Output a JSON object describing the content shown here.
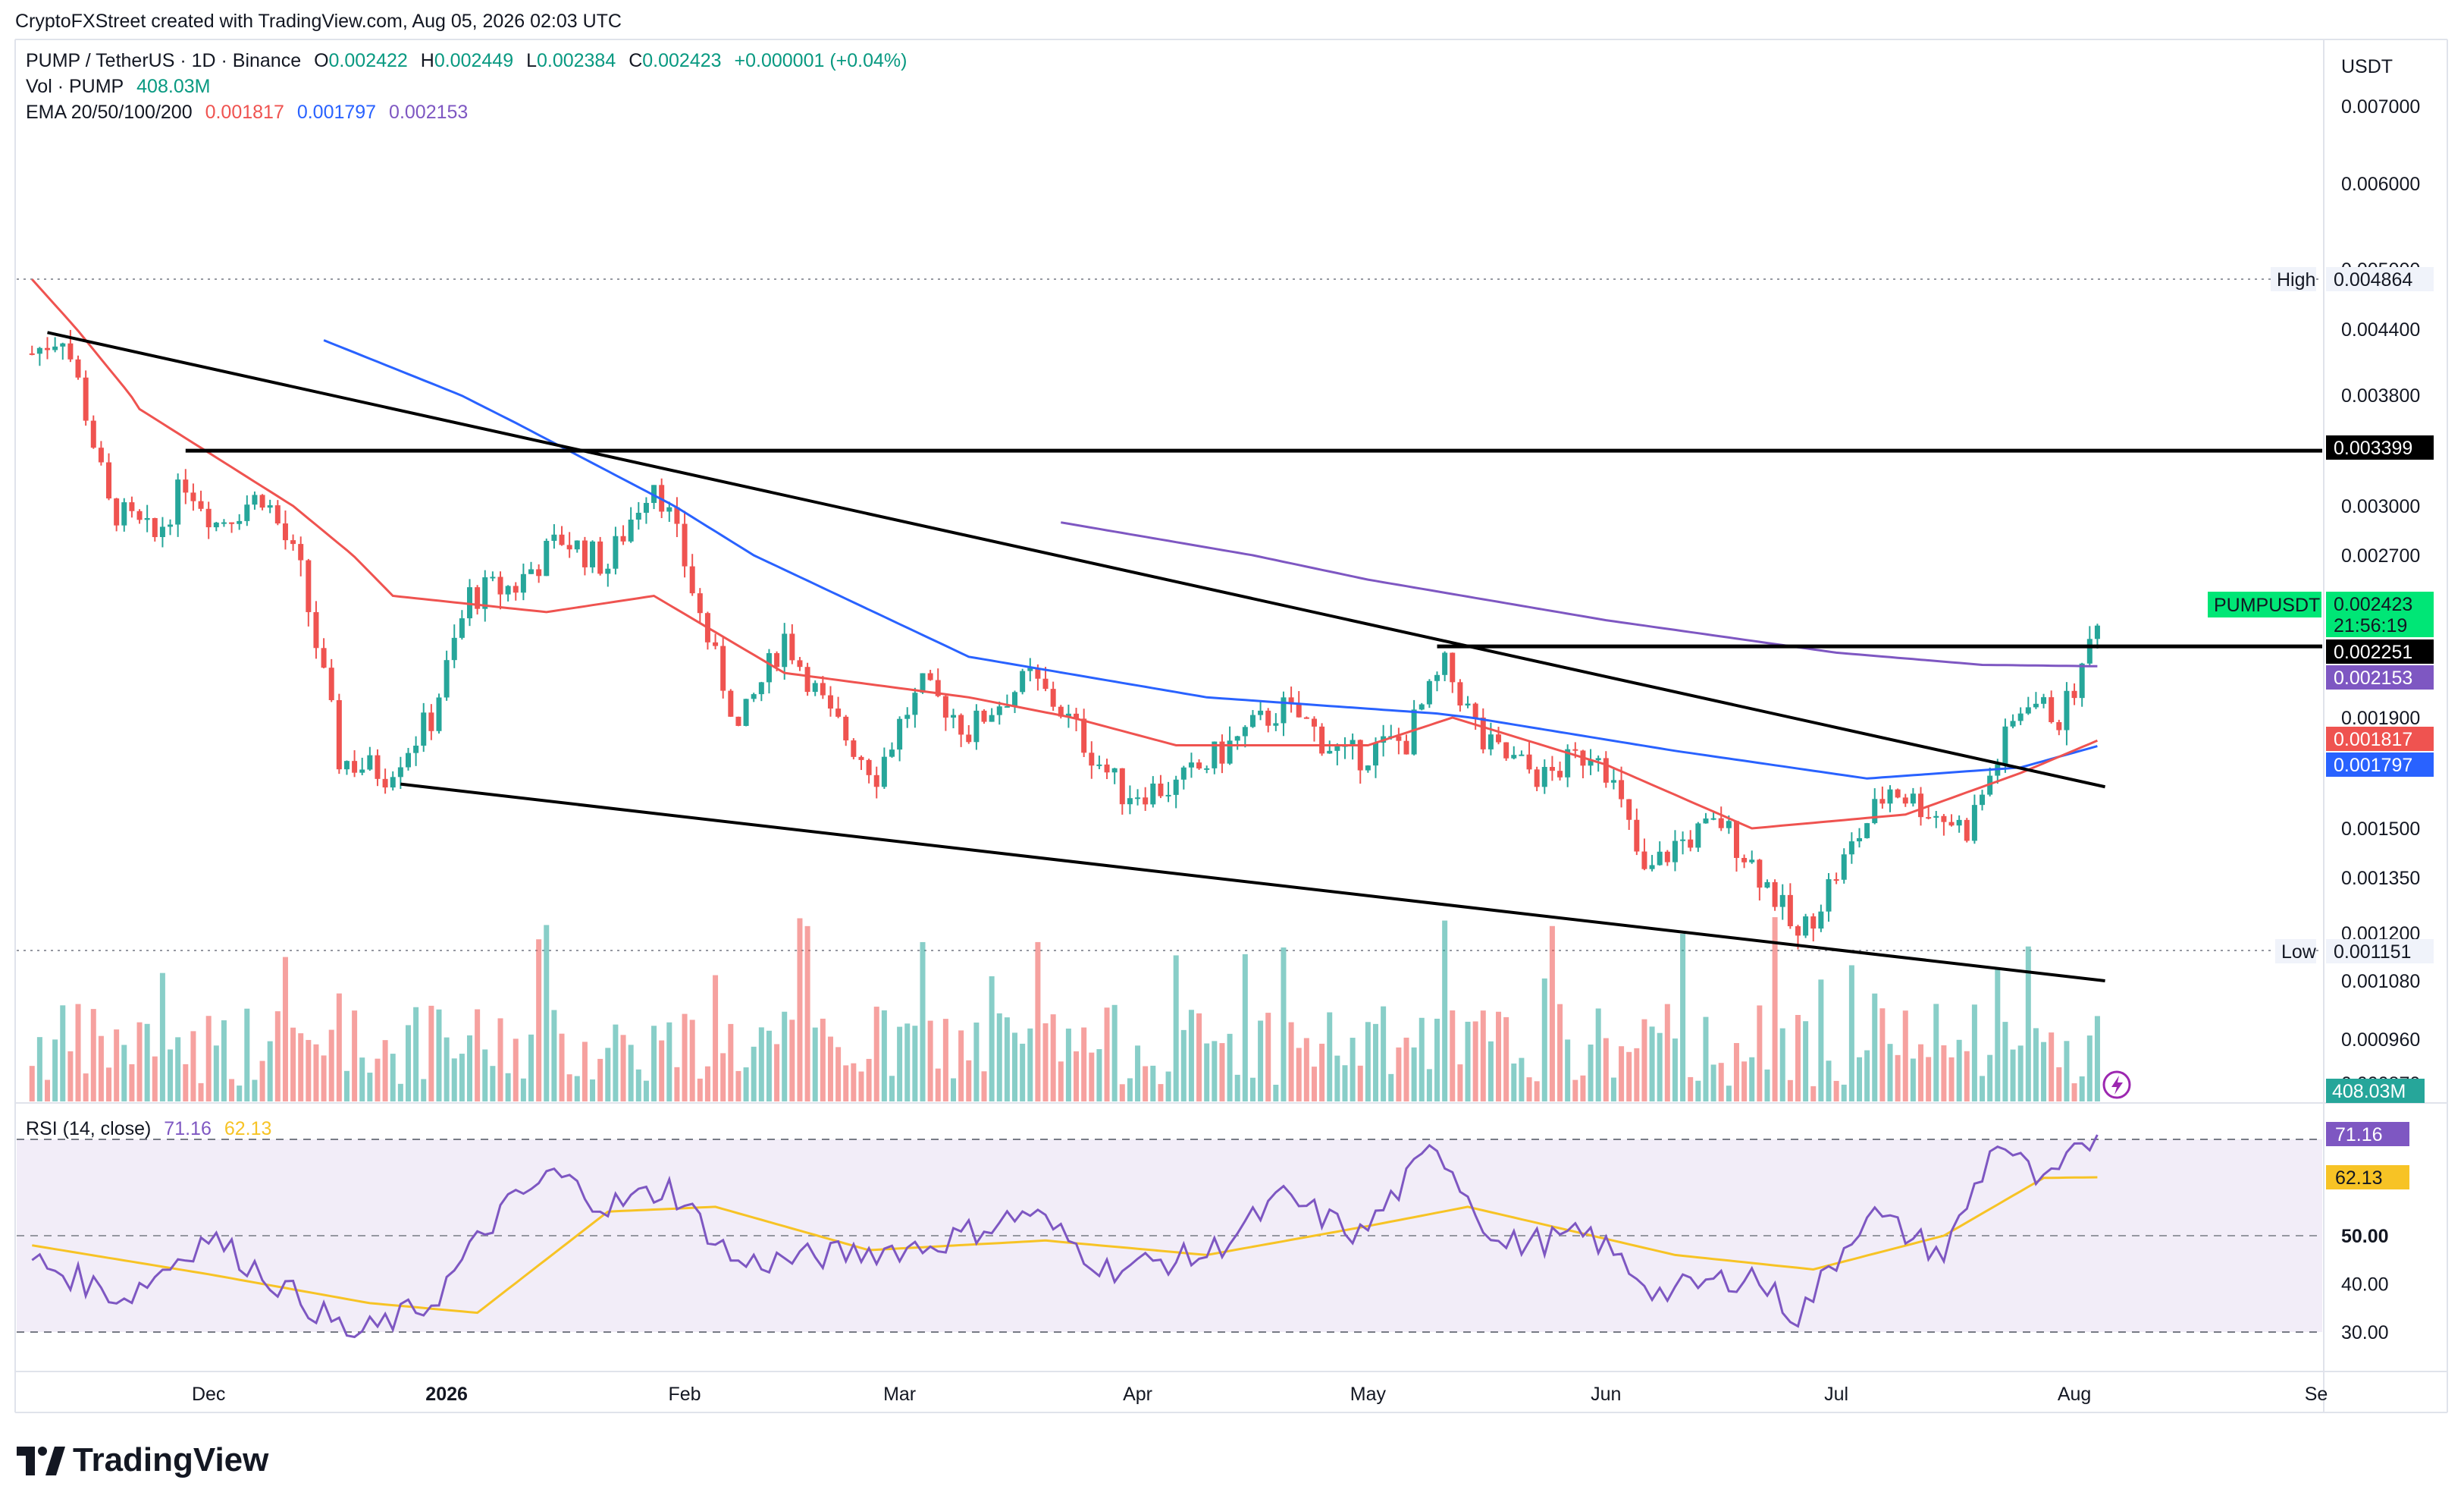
{
  "header": {
    "attribution": "CryptoFXStreet created with TradingView.com, Aug 05, 2026 02:03 UTC"
  },
  "legend": {
    "symbol": "PUMP / TetherUS · 1D · Binance",
    "o_label": "O",
    "o_value": "0.002422",
    "h_label": "H",
    "h_value": "0.002449",
    "l_label": "L",
    "l_value": "0.002384",
    "c_label": "C",
    "c_value": "0.002423",
    "change": "+0.000001 (+0.04%)",
    "vol_label": "Vol · PUMP",
    "vol_value": "408.03M",
    "ema_label": "EMA 20/50/100/200",
    "ema_values": [
      "0.001817",
      "0.001797",
      "0.002153"
    ],
    "rsi_label": "RSI (14, close)",
    "rsi_value": "71.16",
    "rsi_ma_value": "62.13"
  },
  "colors": {
    "up": "#26a69a",
    "down": "#ef5350",
    "ema20": "#ef5350",
    "ema50": "#2962ff",
    "ema200": "#7e57c2",
    "rsi": "#7e57c2",
    "rsi_ma": "#f7c325",
    "price_tag": "#00e676",
    "black_tag": "#000000"
  },
  "brand": {
    "name": "TradingView",
    "logo_icon": "tradingview-logo-icon"
  },
  "chart_data": {
    "type": "candlestick",
    "quote_currency": "USDT",
    "x_ticks": [
      "Dec",
      "2026",
      "Feb",
      "Mar",
      "Apr",
      "May",
      "Jun",
      "Jul",
      "Aug",
      "Se"
    ],
    "y_ticks": [
      "0.007000",
      "0.006000",
      "0.005000",
      "0.004400",
      "0.003800",
      "0.003000",
      "0.002700",
      "0.001900",
      "0.001500",
      "0.001350",
      "0.001200",
      "0.001080",
      "0.000960",
      "0.000870"
    ],
    "price_axis_labels": {
      "high_label": "High",
      "high_value": "0.004864",
      "low_label": "Low",
      "low_value": "0.001151",
      "ticker": "PUMPUSDT",
      "last_price": "0.002423",
      "countdown": "21:56:19",
      "resistance": "0.003399",
      "support": "0.002251",
      "ema200_value": "0.002153",
      "ema20_value": "0.001817",
      "ema50_value": "0.001797",
      "volume_value": "408.03M"
    },
    "horizontal_levels": [
      0.003399,
      0.002251
    ],
    "last_price": 0.002423,
    "period_high": 0.004864,
    "period_low": 0.001151,
    "anchors": [
      {
        "date": "2025-11-08",
        "close": 0.00418
      },
      {
        "date": "2025-11-12",
        "close": 0.00437
      },
      {
        "date": "2025-11-18",
        "close": 0.003
      },
      {
        "date": "2025-11-24",
        "close": 0.0028
      },
      {
        "date": "2025-11-28",
        "close": 0.00318
      },
      {
        "date": "2025-12-02",
        "close": 0.0029
      },
      {
        "date": "2025-12-08",
        "close": 0.00308
      },
      {
        "date": "2025-12-13",
        "close": 0.0026
      },
      {
        "date": "2025-12-18",
        "close": 0.00175
      },
      {
        "date": "2025-12-24",
        "close": 0.0017
      },
      {
        "date": "2025-12-30",
        "close": 0.0019
      },
      {
        "date": "2026-01-04",
        "close": 0.0025
      },
      {
        "date": "2026-01-10",
        "close": 0.00255
      },
      {
        "date": "2026-01-16",
        "close": 0.0028
      },
      {
        "date": "2026-01-22",
        "close": 0.00265
      },
      {
        "date": "2026-01-28",
        "close": 0.0032
      },
      {
        "date": "2026-02-03",
        "close": 0.0024
      },
      {
        "date": "2026-02-08",
        "close": 0.00185
      },
      {
        "date": "2026-02-14",
        "close": 0.0023
      },
      {
        "date": "2026-02-20",
        "close": 0.0019
      },
      {
        "date": "2026-02-26",
        "close": 0.0017
      },
      {
        "date": "2026-03-04",
        "close": 0.00205
      },
      {
        "date": "2026-03-10",
        "close": 0.00185
      },
      {
        "date": "2026-03-18",
        "close": 0.0021
      },
      {
        "date": "2026-03-24",
        "close": 0.00185
      },
      {
        "date": "2026-03-30",
        "close": 0.00163
      },
      {
        "date": "2026-04-06",
        "close": 0.00165
      },
      {
        "date": "2026-04-14",
        "close": 0.00182
      },
      {
        "date": "2026-04-20",
        "close": 0.00195
      },
      {
        "date": "2026-04-28",
        "close": 0.00175
      },
      {
        "date": "2026-05-06",
        "close": 0.00182
      },
      {
        "date": "2026-05-11",
        "close": 0.00215
      },
      {
        "date": "2026-05-16",
        "close": 0.0018
      },
      {
        "date": "2026-05-24",
        "close": 0.00168
      },
      {
        "date": "2026-05-31",
        "close": 0.0018
      },
      {
        "date": "2026-06-06",
        "close": 0.00135
      },
      {
        "date": "2026-06-10",
        "close": 0.00145
      },
      {
        "date": "2026-06-16",
        "close": 0.00152
      },
      {
        "date": "2026-06-23",
        "close": 0.0013
      },
      {
        "date": "2026-06-26",
        "close": 0.00118
      },
      {
        "date": "2026-07-02",
        "close": 0.0014
      },
      {
        "date": "2026-07-08",
        "close": 0.00165
      },
      {
        "date": "2026-07-14",
        "close": 0.00155
      },
      {
        "date": "2026-07-18",
        "close": 0.0015
      },
      {
        "date": "2026-07-22",
        "close": 0.00175
      },
      {
        "date": "2026-07-26",
        "close": 0.002
      },
      {
        "date": "2026-07-30",
        "close": 0.0019
      },
      {
        "date": "2026-08-02",
        "close": 0.00212
      },
      {
        "date": "2026-08-04",
        "close": 0.00242
      }
    ],
    "ema20": [
      {
        "date": "2025-11-08",
        "value": 0.0049
      },
      {
        "date": "2025-11-22",
        "value": 0.0037
      },
      {
        "date": "2025-12-12",
        "value": 0.003
      },
      {
        "date": "2025-12-25",
        "value": 0.0025
      },
      {
        "date": "2026-01-14",
        "value": 0.00242
      },
      {
        "date": "2026-01-28",
        "value": 0.0025
      },
      {
        "date": "2026-02-14",
        "value": 0.00212
      },
      {
        "date": "2026-03-10",
        "value": 0.002
      },
      {
        "date": "2026-04-06",
        "value": 0.0018
      },
      {
        "date": "2026-05-01",
        "value": 0.0018
      },
      {
        "date": "2026-05-12",
        "value": 0.0019
      },
      {
        "date": "2026-06-01",
        "value": 0.00173
      },
      {
        "date": "2026-06-20",
        "value": 0.0015
      },
      {
        "date": "2026-07-10",
        "value": 0.00155
      },
      {
        "date": "2026-07-25",
        "value": 0.0017
      },
      {
        "date": "2026-08-04",
        "value": 0.001817
      }
    ],
    "ema50": [
      {
        "date": "2025-12-16",
        "value": 0.0043
      },
      {
        "date": "2026-01-10",
        "value": 0.0036
      },
      {
        "date": "2026-02-10",
        "value": 0.0027
      },
      {
        "date": "2026-03-10",
        "value": 0.0022
      },
      {
        "date": "2026-04-10",
        "value": 0.002
      },
      {
        "date": "2026-05-10",
        "value": 0.00192
      },
      {
        "date": "2026-06-10",
        "value": 0.00178
      },
      {
        "date": "2026-07-05",
        "value": 0.00168
      },
      {
        "date": "2026-07-25",
        "value": 0.00172
      },
      {
        "date": "2026-08-04",
        "value": 0.001797
      }
    ],
    "ema200": [
      {
        "date": "2026-03-22",
        "value": 0.0029
      },
      {
        "date": "2026-05-01",
        "value": 0.00258
      },
      {
        "date": "2026-06-01",
        "value": 0.00238
      },
      {
        "date": "2026-07-01",
        "value": 0.00222
      },
      {
        "date": "2026-07-20",
        "value": 0.00216
      },
      {
        "date": "2026-08-04",
        "value": 0.002153
      }
    ],
    "trendlines": [
      {
        "from": {
          "date": "2025-11-10",
          "value": 0.00437
        },
        "to": {
          "date": "2026-08-05",
          "value": 0.00165
        }
      },
      {
        "from": {
          "date": "2025-12-26",
          "value": 0.00166
        },
        "to": {
          "date": "2026-08-05",
          "value": 0.00108
        }
      }
    ],
    "volume_axis_value": "408.03M",
    "rsi": {
      "period": 14,
      "last": 71.16,
      "ma_last": 62.13,
      "axis_labels": [
        "50.00",
        "40.00",
        "30.00"
      ],
      "band": [
        30,
        70
      ],
      "anchors": [
        {
          "date": "2025-11-08",
          "value": 45
        },
        {
          "date": "2025-11-20",
          "value": 37
        },
        {
          "date": "2025-12-01",
          "value": 50
        },
        {
          "date": "2025-12-10",
          "value": 40
        },
        {
          "date": "2025-12-20",
          "value": 29
        },
        {
          "date": "2025-12-30",
          "value": 36
        },
        {
          "date": "2026-01-08",
          "value": 55
        },
        {
          "date": "2026-01-15",
          "value": 63
        },
        {
          "date": "2026-01-22",
          "value": 56
        },
        {
          "date": "2026-01-30",
          "value": 60
        },
        {
          "date": "2026-02-08",
          "value": 44
        },
        {
          "date": "2026-02-20",
          "value": 46
        },
        {
          "date": "2026-03-05",
          "value": 48
        },
        {
          "date": "2026-03-18",
          "value": 55
        },
        {
          "date": "2026-03-28",
          "value": 43
        },
        {
          "date": "2026-04-10",
          "value": 46
        },
        {
          "date": "2026-04-20",
          "value": 58
        },
        {
          "date": "2026-04-30",
          "value": 50
        },
        {
          "date": "2026-05-10",
          "value": 69
        },
        {
          "date": "2026-05-18",
          "value": 48
        },
        {
          "date": "2026-05-30",
          "value": 50
        },
        {
          "date": "2026-06-08",
          "value": 38
        },
        {
          "date": "2026-06-20",
          "value": 42
        },
        {
          "date": "2026-06-26",
          "value": 33
        },
        {
          "date": "2026-07-05",
          "value": 55
        },
        {
          "date": "2026-07-15",
          "value": 46
        },
        {
          "date": "2026-07-22",
          "value": 70
        },
        {
          "date": "2026-07-28",
          "value": 60
        },
        {
          "date": "2026-08-04",
          "value": 71.16
        }
      ],
      "ma_anchors": [
        {
          "date": "2025-11-08",
          "value": 48
        },
        {
          "date": "2025-12-01",
          "value": 42
        },
        {
          "date": "2025-12-22",
          "value": 36
        },
        {
          "date": "2026-01-05",
          "value": 34
        },
        {
          "date": "2026-01-22",
          "value": 55
        },
        {
          "date": "2026-02-05",
          "value": 56
        },
        {
          "date": "2026-02-25",
          "value": 47
        },
        {
          "date": "2026-03-20",
          "value": 49
        },
        {
          "date": "2026-04-10",
          "value": 46
        },
        {
          "date": "2026-05-01",
          "value": 52
        },
        {
          "date": "2026-05-14",
          "value": 56
        },
        {
          "date": "2026-06-10",
          "value": 46
        },
        {
          "date": "2026-06-28",
          "value": 43
        },
        {
          "date": "2026-07-15",
          "value": 50
        },
        {
          "date": "2026-07-28",
          "value": 62
        },
        {
          "date": "2026-08-04",
          "value": 62.13
        }
      ]
    }
  }
}
